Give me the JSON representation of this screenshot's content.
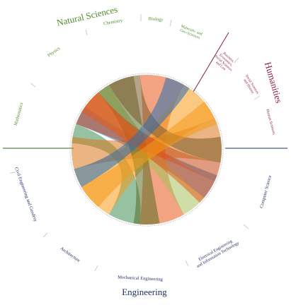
{
  "colors": {
    "natural_sciences": "#4f8a2a",
    "humanities": "#8a1d4a",
    "engineering": "#1f2f63",
    "tick_gray": "#cccccc",
    "ring_gray": "#bbbbbb"
  },
  "groups": [
    {
      "key": "natural_sciences",
      "label": "Natural Sciences"
    },
    {
      "key": "humanities",
      "label": "Humanities"
    },
    {
      "key": "engineering",
      "label": "Engineering"
    }
  ],
  "disciplines": [
    {
      "key": "physics",
      "label": "Physics"
    },
    {
      "key": "chemistry",
      "label": "Chemistry"
    },
    {
      "key": "biology",
      "label": "Biology"
    },
    {
      "key": "materials",
      "label": "Materials- and Geo-Sciences"
    },
    {
      "key": "mathematics",
      "label": "Mathematics"
    },
    {
      "key": "business",
      "label": "Business, Economics, Social Sciences and Law"
    },
    {
      "key": "social_sciences_history",
      "label": "Social Sciences and History"
    },
    {
      "key": "human_sciences",
      "label": "Human Sciences"
    },
    {
      "key": "computer_science",
      "label": "Computer Science"
    },
    {
      "key": "electrical",
      "label": "Electrical Engineering and Information Technology"
    },
    {
      "key": "mechanical",
      "label": "Mechanical Engineering"
    },
    {
      "key": "architecture",
      "label": "Architecture"
    },
    {
      "key": "civil",
      "label": "Civil Engineering and Geodesy"
    }
  ],
  "arc_colors": [
    "#2a6fb3",
    "#3f8f55",
    "#e85a1b",
    "#f59a1a",
    "#d9781c",
    "#a8c15c",
    "#5a6b22",
    "#c44a1a",
    "#7a5a2a"
  ]
}
